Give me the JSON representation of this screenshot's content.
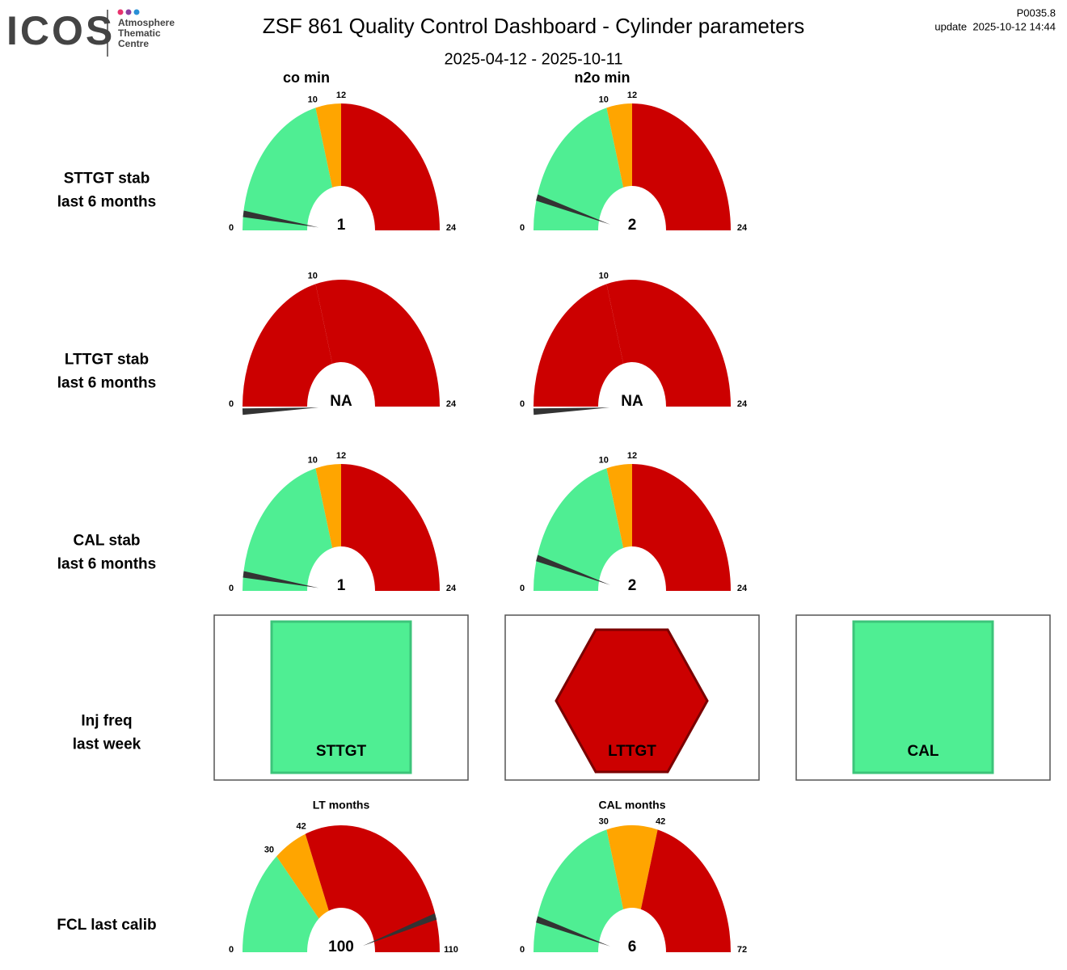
{
  "header": {
    "logo": "ICOS",
    "logo_sub": [
      "Atmosphere",
      "Thematic",
      "Centre"
    ],
    "title": "ZSF 861 Quality Control Dashboard - Cylinder parameters",
    "period": "2025-04-12 - 2025-10-11",
    "version": "P0035.8",
    "update": "update  2025-10-12 14:44"
  },
  "columns": [
    "co min",
    "n2o min"
  ],
  "rows": [
    {
      "label": [
        "STTGT stab",
        "last 6 months"
      ],
      "gauges": [
        {
          "type": "gauge",
          "value": 1,
          "ticks": [
            0,
            10,
            12,
            24
          ],
          "band_colors": [
            "#4fee93",
            "#ffa500",
            "#cc0000"
          ]
        },
        {
          "type": "gauge",
          "value": 2,
          "ticks": [
            0,
            10,
            12,
            24
          ],
          "band_colors": [
            "#4fee93",
            "#ffa500",
            "#cc0000"
          ]
        }
      ]
    },
    {
      "label": [
        "LTTGT stab",
        "last 6 months"
      ],
      "gauges": [
        {
          "type": "gauge",
          "value": null,
          "value_label": "NA",
          "ticks": [
            0,
            10,
            24
          ],
          "band_colors": [
            "#cc0000",
            "#cc0000"
          ]
        },
        {
          "type": "gauge",
          "value": null,
          "value_label": "NA",
          "ticks": [
            0,
            10,
            24
          ],
          "band_colors": [
            "#cc0000",
            "#cc0000"
          ]
        }
      ]
    },
    {
      "label": [
        "CAL stab",
        "last 6 months"
      ],
      "gauges": [
        {
          "type": "gauge",
          "value": 1,
          "ticks": [
            0,
            10,
            12,
            24
          ],
          "band_colors": [
            "#4fee93",
            "#ffa500",
            "#cc0000"
          ]
        },
        {
          "type": "gauge",
          "value": 2,
          "ticks": [
            0,
            10,
            12,
            24
          ],
          "band_colors": [
            "#4fee93",
            "#ffa500",
            "#cc0000"
          ]
        }
      ]
    },
    {
      "label": [
        "Inj freq",
        "last week"
      ],
      "indicators": [
        {
          "label": "STTGT",
          "shape": "square",
          "color": "#4fee93"
        },
        {
          "label": "LTTGT",
          "shape": "hexagon",
          "color": "#cc0000"
        },
        {
          "label": "CAL",
          "shape": "square",
          "color": "#4fee93"
        }
      ]
    },
    {
      "label": [
        "FCL last calib"
      ],
      "gauges": [
        {
          "type": "gauge",
          "title": "LT months",
          "value": 100,
          "ticks": [
            0,
            30,
            42,
            110
          ],
          "band_colors": [
            "#4fee93",
            "#ffa500",
            "#cc0000"
          ]
        },
        {
          "type": "gauge",
          "title": "CAL months",
          "value": 6,
          "ticks": [
            0,
            30,
            42,
            72
          ],
          "band_colors": [
            "#4fee93",
            "#ffa500",
            "#cc0000"
          ]
        }
      ]
    }
  ]
}
